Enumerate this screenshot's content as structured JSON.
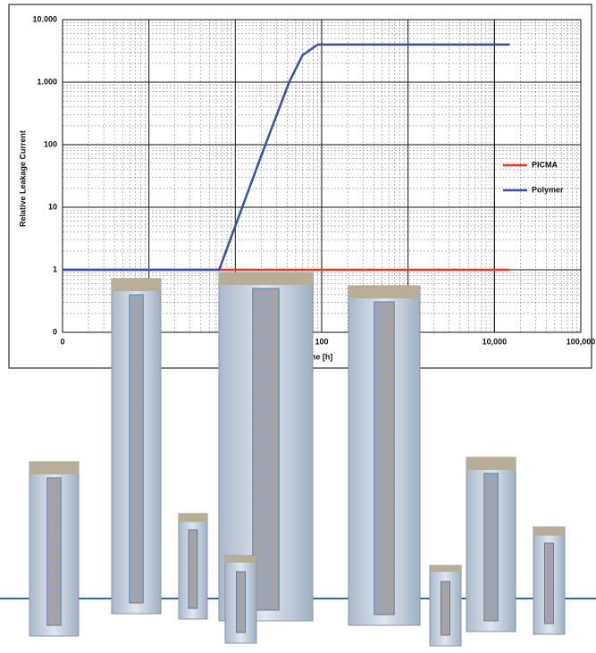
{
  "chart_data": {
    "type": "line",
    "y_label": "Relative Leakage Current",
    "x_label": "Time [h]",
    "log_x": true,
    "log_y": true,
    "grid": true,
    "minor_grid": true,
    "legend": "right",
    "xlim": [
      0.1,
      100000
    ],
    "xticks": [
      {
        "value": 0.1,
        "label": "0"
      },
      100,
      {
        "value": 10000,
        "label": "10,000"
      },
      {
        "value": 100000,
        "label": "100,000"
      }
    ],
    "ylim": [
      0.1,
      10000
    ],
    "yticks": [
      {
        "value": 0.1,
        "label": "0"
      },
      1,
      10,
      100,
      {
        "value": 1000,
        "label": "1.000"
      },
      {
        "value": 10000,
        "label": "10.000"
      }
    ],
    "series": [
      {
        "name": "PICMA",
        "color": "#e8372a",
        "x": [
          0.1,
          15000
        ],
        "values": [
          1,
          1
        ]
      },
      {
        "name": "Polymer",
        "color": "#3a4fa8",
        "x": [
          0.1,
          6.5,
          20,
          42,
          60,
          90,
          15000
        ],
        "values": [
          1,
          1,
          67,
          1000,
          2700,
          4000,
          4000
        ]
      }
    ]
  }
}
